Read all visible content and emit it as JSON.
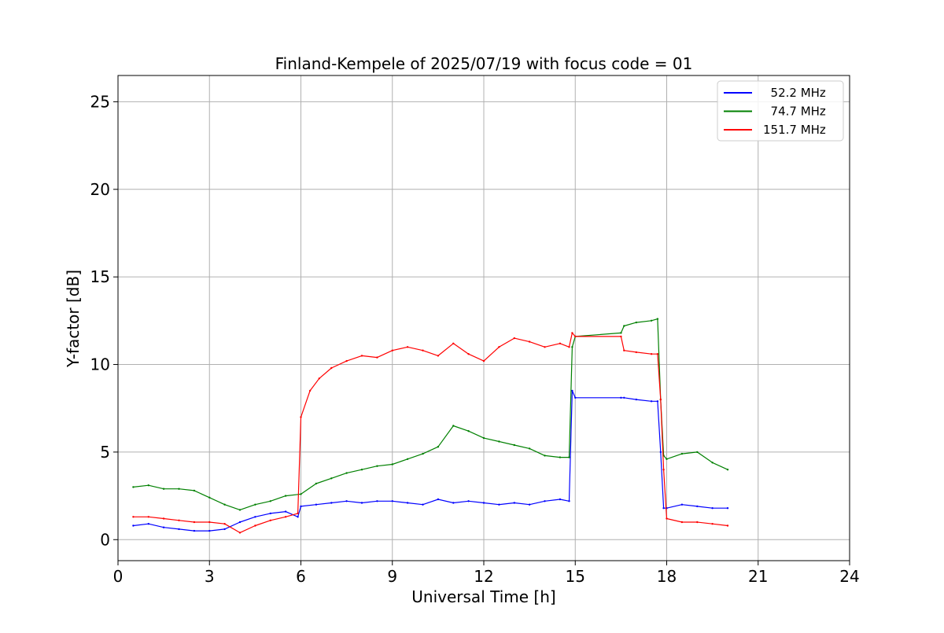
{
  "chart_data": {
    "type": "line",
    "title": "Finland-Kempele of 2025/07/19 with focus code = 01",
    "xlabel": "Universal Time [h]",
    "ylabel": "Y-factor [dB]",
    "xlim": [
      0,
      24
    ],
    "ylim": [
      -1.2,
      26.5
    ],
    "xticks": [
      0,
      3,
      6,
      9,
      12,
      15,
      18,
      21,
      24
    ],
    "yticks": [
      0,
      5,
      10,
      15,
      20,
      25
    ],
    "grid": true,
    "legend_placement": "top-right",
    "series": [
      {
        "name": "  52.2 MHz",
        "color": "#0000ff",
        "x": [
          0.5,
          1.0,
          1.5,
          2.0,
          2.5,
          3.0,
          3.5,
          4.0,
          4.5,
          5.0,
          5.5,
          5.9,
          6.0,
          6.5,
          7.0,
          7.5,
          8.0,
          8.5,
          9.0,
          9.5,
          10.0,
          10.5,
          11.0,
          11.5,
          12.0,
          12.5,
          13.0,
          13.5,
          14.0,
          14.5,
          14.8,
          14.9,
          15.0,
          16.5,
          16.6,
          17.0,
          17.5,
          17.7,
          17.8,
          17.9,
          18.0,
          18.5,
          19.0,
          19.5,
          20.0
        ],
        "y": [
          0.8,
          0.9,
          0.7,
          0.6,
          0.5,
          0.5,
          0.6,
          1.0,
          1.3,
          1.5,
          1.6,
          1.3,
          1.9,
          2.0,
          2.1,
          2.2,
          2.1,
          2.2,
          2.2,
          2.1,
          2.0,
          2.3,
          2.1,
          2.2,
          2.1,
          2.0,
          2.1,
          2.0,
          2.2,
          2.3,
          2.2,
          8.5,
          8.1,
          8.1,
          8.1,
          8.0,
          7.9,
          7.9,
          5.0,
          1.8,
          1.8,
          2.0,
          1.9,
          1.8,
          1.8
        ]
      },
      {
        "name": "  74.7 MHz",
        "color": "#008000",
        "x": [
          0.5,
          1.0,
          1.5,
          2.0,
          2.5,
          3.0,
          3.5,
          4.0,
          4.5,
          5.0,
          5.5,
          6.0,
          6.5,
          7.0,
          7.5,
          8.0,
          8.5,
          9.0,
          9.5,
          10.0,
          10.5,
          11.0,
          11.5,
          12.0,
          12.5,
          13.0,
          13.5,
          14.0,
          14.5,
          14.8,
          14.9,
          15.0,
          16.5,
          16.6,
          17.0,
          17.5,
          17.7,
          17.8,
          17.9,
          18.0,
          18.5,
          19.0,
          19.5,
          20.0
        ],
        "y": [
          3.0,
          3.1,
          2.9,
          2.9,
          2.8,
          2.4,
          2.0,
          1.7,
          2.0,
          2.2,
          2.5,
          2.6,
          3.2,
          3.5,
          3.8,
          4.0,
          4.2,
          4.3,
          4.6,
          4.9,
          5.3,
          6.5,
          6.2,
          5.8,
          5.6,
          5.4,
          5.2,
          4.8,
          4.7,
          4.7,
          11.0,
          11.6,
          11.8,
          12.2,
          12.4,
          12.5,
          12.6,
          8.0,
          4.8,
          4.6,
          4.9,
          5.0,
          4.4,
          4.0
        ]
      },
      {
        "name": "151.7 MHz",
        "color": "#ff0000",
        "x": [
          0.5,
          1.0,
          1.5,
          2.0,
          2.5,
          3.0,
          3.5,
          4.0,
          4.5,
          5.0,
          5.5,
          5.9,
          6.0,
          6.3,
          6.6,
          7.0,
          7.5,
          8.0,
          8.5,
          9.0,
          9.5,
          10.0,
          10.5,
          11.0,
          11.5,
          12.0,
          12.5,
          13.0,
          13.5,
          14.0,
          14.5,
          14.8,
          14.9,
          15.0,
          16.5,
          16.6,
          17.0,
          17.5,
          17.7,
          17.8,
          17.9,
          18.0,
          18.5,
          19.0,
          19.5,
          20.0
        ],
        "y": [
          1.3,
          1.3,
          1.2,
          1.1,
          1.0,
          1.0,
          0.9,
          0.4,
          0.8,
          1.1,
          1.3,
          1.5,
          7.0,
          8.5,
          9.2,
          9.8,
          10.2,
          10.5,
          10.4,
          10.8,
          11.0,
          10.8,
          10.5,
          11.2,
          10.6,
          10.2,
          11.0,
          11.5,
          11.3,
          11.0,
          11.2,
          11.0,
          11.8,
          11.6,
          11.6,
          10.8,
          10.7,
          10.6,
          10.6,
          8.0,
          4.0,
          1.2,
          1.0,
          1.0,
          0.9,
          0.8
        ]
      }
    ]
  }
}
